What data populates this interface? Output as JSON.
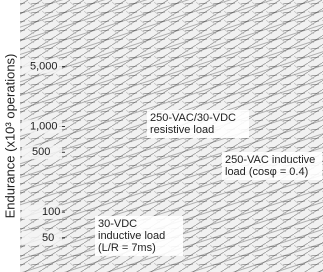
{
  "chart_data": {
    "type": "line",
    "y_label": "Endurance (x10³ operations)",
    "y_scale": "log",
    "ylim": [
      20,
      30000
    ],
    "yticks": [
      50,
      100,
      500,
      {
        "value": 1000,
        "label": "1,000"
      },
      {
        "value": 5000,
        "label": "5,000"
      }
    ],
    "annotations": [
      [
        "250-VAC/30-VDC",
        "resistive load"
      ],
      [
        "250-VAC inductive",
        "load (cosφ = 0.4)"
      ],
      [
        "30-VDC",
        "inductive load",
        "(L/R = 7ms)"
      ]
    ]
  }
}
